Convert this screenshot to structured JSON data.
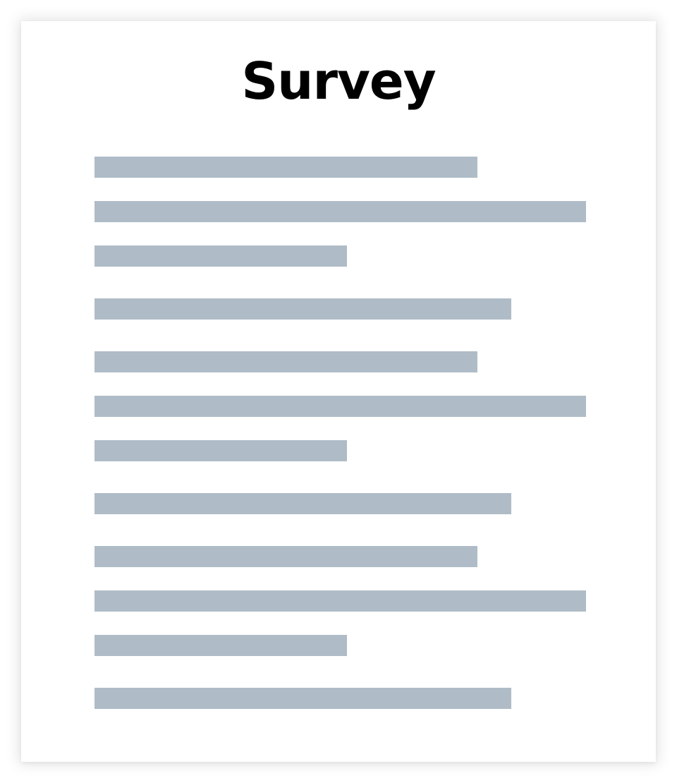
{
  "document": {
    "title": "Survey"
  },
  "colors": {
    "placeholder_line": "#afbcc7",
    "page_background": "#ffffff",
    "title_text": "#000000"
  }
}
